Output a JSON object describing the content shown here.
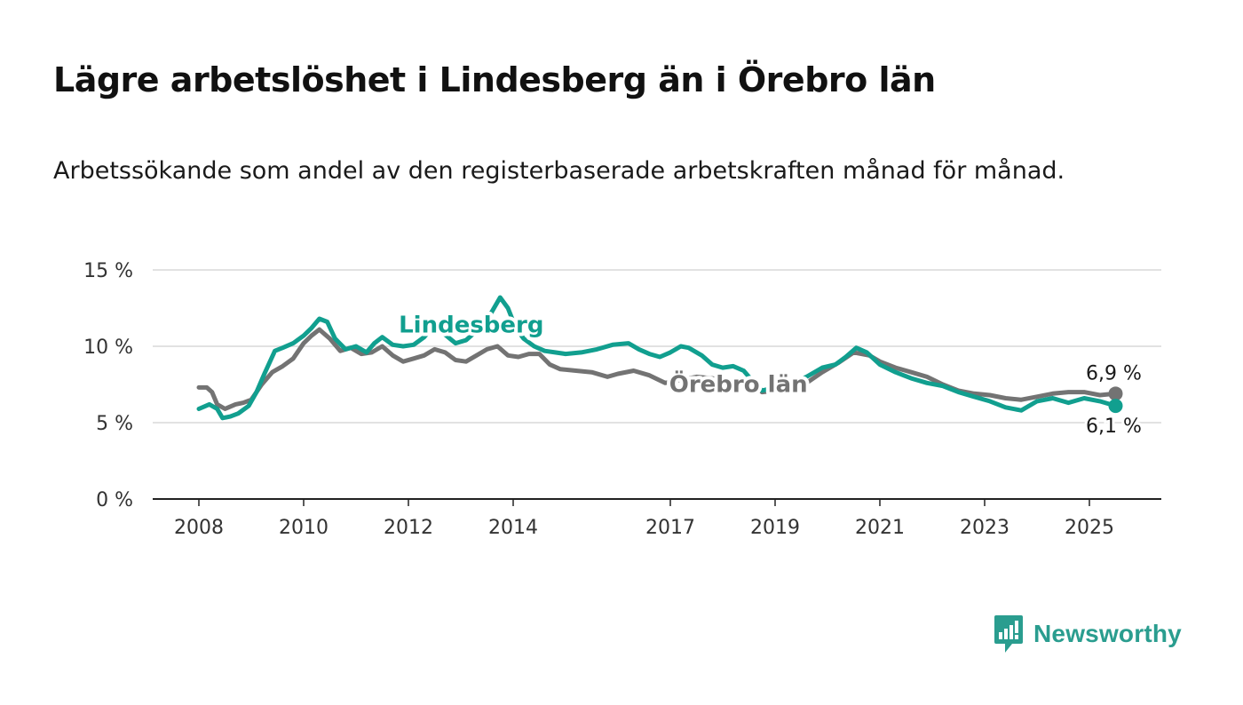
{
  "title": "Lägre arbetslöshet i Lindesberg än i Örebro län",
  "subtitle": "Arbetssökande som andel av den registerbaserade arbetskraften månad för månad.",
  "brand": {
    "name": "Newsworthy",
    "icon": "newsworthy-logo-icon",
    "color": "#2a9d8f"
  },
  "chart_data": {
    "type": "line",
    "title": "Lägre arbetslöshet i Lindesberg än i Örebro län",
    "xlabel": "",
    "ylabel": "",
    "ylim": [
      0,
      15
    ],
    "xlim": [
      2008,
      2025.8
    ],
    "y_ticks": [
      0,
      5,
      10,
      15
    ],
    "y_tick_labels": [
      "0 %",
      "5 %",
      "10 %",
      "15 %"
    ],
    "x_ticks": [
      2008,
      2010,
      2012,
      2014,
      2017,
      2019,
      2021,
      2023,
      2025
    ],
    "x_tick_labels": [
      "2008",
      "2010",
      "2012",
      "2014",
      "2017",
      "2019",
      "2021",
      "2023",
      "2025"
    ],
    "grid": true,
    "legend": "inline labels",
    "series": [
      {
        "name": "Örebro län",
        "color": "#737373",
        "label_x": 2018.3,
        "label_y": 7.0,
        "end_label": "6,9 %",
        "points": [
          [
            2008.0,
            7.3
          ],
          [
            2008.15,
            7.3
          ],
          [
            2008.25,
            7.0
          ],
          [
            2008.35,
            6.2
          ],
          [
            2008.5,
            5.9
          ],
          [
            2008.7,
            6.2
          ],
          [
            2008.85,
            6.3
          ],
          [
            2009.0,
            6.5
          ],
          [
            2009.2,
            7.5
          ],
          [
            2009.4,
            8.3
          ],
          [
            2009.6,
            8.7
          ],
          [
            2009.8,
            9.2
          ],
          [
            2010.0,
            10.2
          ],
          [
            2010.15,
            10.7
          ],
          [
            2010.3,
            11.1
          ],
          [
            2010.5,
            10.5
          ],
          [
            2010.7,
            9.7
          ],
          [
            2010.9,
            9.9
          ],
          [
            2011.1,
            9.5
          ],
          [
            2011.3,
            9.6
          ],
          [
            2011.5,
            10.0
          ],
          [
            2011.7,
            9.4
          ],
          [
            2011.9,
            9.0
          ],
          [
            2012.1,
            9.2
          ],
          [
            2012.3,
            9.4
          ],
          [
            2012.5,
            9.8
          ],
          [
            2012.7,
            9.6
          ],
          [
            2012.9,
            9.1
          ],
          [
            2013.1,
            9.0
          ],
          [
            2013.3,
            9.4
          ],
          [
            2013.5,
            9.8
          ],
          [
            2013.7,
            10.0
          ],
          [
            2013.9,
            9.4
          ],
          [
            2014.1,
            9.3
          ],
          [
            2014.3,
            9.5
          ],
          [
            2014.5,
            9.5
          ],
          [
            2014.7,
            8.8
          ],
          [
            2014.9,
            8.5
          ],
          [
            2015.2,
            8.4
          ],
          [
            2015.5,
            8.3
          ],
          [
            2015.8,
            8.0
          ],
          [
            2016.0,
            8.2
          ],
          [
            2016.3,
            8.4
          ],
          [
            2016.6,
            8.1
          ],
          [
            2016.9,
            7.6
          ],
          [
            2017.2,
            7.8
          ],
          [
            2017.5,
            8.0
          ],
          [
            2017.8,
            7.9
          ],
          [
            2018.1,
            7.7
          ],
          [
            2018.4,
            7.8
          ],
          [
            2018.6,
            7.7
          ],
          [
            2018.75,
            7.0
          ],
          [
            2019.0,
            7.1
          ],
          [
            2019.3,
            7.3
          ],
          [
            2019.6,
            7.6
          ],
          [
            2019.9,
            8.3
          ],
          [
            2020.2,
            8.9
          ],
          [
            2020.5,
            9.6
          ],
          [
            2020.8,
            9.4
          ],
          [
            2021.0,
            9.0
          ],
          [
            2021.3,
            8.6
          ],
          [
            2021.6,
            8.3
          ],
          [
            2021.9,
            8.0
          ],
          [
            2022.2,
            7.5
          ],
          [
            2022.5,
            7.1
          ],
          [
            2022.8,
            6.9
          ],
          [
            2023.1,
            6.8
          ],
          [
            2023.4,
            6.6
          ],
          [
            2023.7,
            6.5
          ],
          [
            2024.0,
            6.7
          ],
          [
            2024.3,
            6.9
          ],
          [
            2024.6,
            7.0
          ],
          [
            2024.9,
            7.0
          ],
          [
            2025.2,
            6.8
          ],
          [
            2025.5,
            6.9
          ]
        ]
      },
      {
        "name": "Lindesberg",
        "color": "#119f8f",
        "label_x": 2013.2,
        "label_y": 10.9,
        "end_label": "6,1 %",
        "points": [
          [
            2008.0,
            5.9
          ],
          [
            2008.2,
            6.2
          ],
          [
            2008.35,
            5.9
          ],
          [
            2008.45,
            5.3
          ],
          [
            2008.6,
            5.4
          ],
          [
            2008.75,
            5.6
          ],
          [
            2008.95,
            6.1
          ],
          [
            2009.1,
            7.0
          ],
          [
            2009.25,
            8.2
          ],
          [
            2009.45,
            9.7
          ],
          [
            2009.6,
            9.9
          ],
          [
            2009.8,
            10.2
          ],
          [
            2010.0,
            10.7
          ],
          [
            2010.15,
            11.2
          ],
          [
            2010.3,
            11.8
          ],
          [
            2010.45,
            11.6
          ],
          [
            2010.6,
            10.5
          ],
          [
            2010.8,
            9.8
          ],
          [
            2011.0,
            10.0
          ],
          [
            2011.2,
            9.6
          ],
          [
            2011.35,
            10.2
          ],
          [
            2011.5,
            10.6
          ],
          [
            2011.7,
            10.1
          ],
          [
            2011.9,
            10.0
          ],
          [
            2012.1,
            10.1
          ],
          [
            2012.3,
            10.6
          ],
          [
            2012.45,
            11.2
          ],
          [
            2012.65,
            10.9
          ],
          [
            2012.9,
            10.2
          ],
          [
            2013.1,
            10.4
          ],
          [
            2013.3,
            11.0
          ],
          [
            2013.55,
            12.0
          ],
          [
            2013.75,
            13.2
          ],
          [
            2013.9,
            12.5
          ],
          [
            2014.05,
            11.2
          ],
          [
            2014.2,
            10.5
          ],
          [
            2014.4,
            10.0
          ],
          [
            2014.6,
            9.7
          ],
          [
            2014.8,
            9.6
          ],
          [
            2015.0,
            9.5
          ],
          [
            2015.3,
            9.6
          ],
          [
            2015.6,
            9.8
          ],
          [
            2015.9,
            10.1
          ],
          [
            2016.2,
            10.2
          ],
          [
            2016.4,
            9.8
          ],
          [
            2016.6,
            9.5
          ],
          [
            2016.8,
            9.3
          ],
          [
            2017.0,
            9.6
          ],
          [
            2017.2,
            10.0
          ],
          [
            2017.35,
            9.9
          ],
          [
            2017.6,
            9.4
          ],
          [
            2017.8,
            8.8
          ],
          [
            2018.0,
            8.6
          ],
          [
            2018.2,
            8.7
          ],
          [
            2018.4,
            8.4
          ],
          [
            2018.6,
            7.6
          ],
          [
            2018.75,
            7.1
          ],
          [
            2019.0,
            7.3
          ],
          [
            2019.3,
            7.6
          ],
          [
            2019.6,
            8.0
          ],
          [
            2019.9,
            8.6
          ],
          [
            2020.15,
            8.8
          ],
          [
            2020.35,
            9.3
          ],
          [
            2020.55,
            9.9
          ],
          [
            2020.75,
            9.6
          ],
          [
            2021.0,
            8.8
          ],
          [
            2021.3,
            8.3
          ],
          [
            2021.6,
            7.9
          ],
          [
            2021.9,
            7.6
          ],
          [
            2022.2,
            7.4
          ],
          [
            2022.5,
            7.0
          ],
          [
            2022.8,
            6.7
          ],
          [
            2023.1,
            6.4
          ],
          [
            2023.4,
            6.0
          ],
          [
            2023.7,
            5.8
          ],
          [
            2024.0,
            6.4
          ],
          [
            2024.3,
            6.6
          ],
          [
            2024.6,
            6.3
          ],
          [
            2024.9,
            6.6
          ],
          [
            2025.2,
            6.4
          ],
          [
            2025.5,
            6.1
          ]
        ]
      }
    ]
  }
}
